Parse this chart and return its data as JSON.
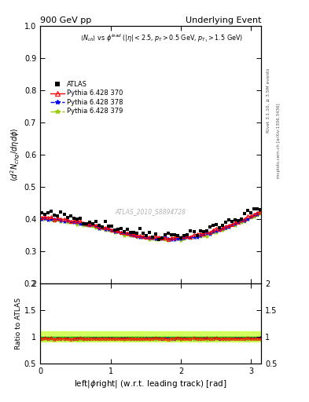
{
  "title_left": "900 GeV pp",
  "title_right": "Underlying Event",
  "ylabel_main": "$\\langle d^2 N_{chg}/d\\eta d\\phi\\rangle$",
  "xlabel": "left|$\\phi$right| (w.r.t. leading track) [rad]",
  "ylabel_ratio": "Ratio to ATLAS",
  "annotation": "$\\langle N_{ch}\\rangle$ vs $\\phi^{lead}$ ($|\\eta| < 2.5, p_T > 0.5$ GeV, $p_{T_1} > 1.5$ GeV)",
  "watermark": "ATLAS_2010_S8894728",
  "right_label_top": "Rivet 3.1.10, ≥ 3.5M events",
  "right_label_bot": "mcplots.cern.ch [arXiv:1306.3436]",
  "xlim": [
    0,
    3.14159
  ],
  "ylim_main": [
    0.2,
    1.0
  ],
  "ylim_ratio": [
    0.5,
    2.0
  ],
  "yticks_main": [
    0.2,
    0.3,
    0.4,
    0.5,
    0.6,
    0.7,
    0.8,
    0.9,
    1.0
  ],
  "yticks_ratio": [
    0.5,
    1.0,
    1.5,
    2.0
  ],
  "xticks": [
    0,
    1,
    2,
    3
  ],
  "atlas_color": "#000000",
  "py370_color": "#FF0000",
  "py378_color": "#0000FF",
  "py379_color": "#99CC00",
  "py379_band_color": "#CCFF44",
  "green_line_color": "#00AA00"
}
